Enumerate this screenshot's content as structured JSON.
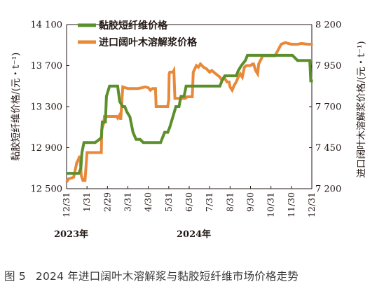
{
  "caption": {
    "figure": "图 5",
    "text": "2024 年进口阔叶木溶解浆与黏胶短纤维市场价格走势"
  },
  "colors": {
    "viscose": "#5b8f2c",
    "pulp": "#e8893a",
    "axis": "#231815"
  },
  "chart_data": {
    "type": "line",
    "x_ticks": [
      "12/31",
      "1/31",
      "2/29",
      "3/31",
      "4/30",
      "5/31",
      "6/30",
      "7/31",
      "8/31",
      "9/30",
      "10/31",
      "11/30",
      "12/31"
    ],
    "year_labels": [
      {
        "label": "2023年",
        "at": "12/31"
      },
      {
        "label": "2024年",
        "at": "6/30"
      }
    ],
    "y_left": {
      "label": "黏胶短纤维价格/(元・t⁻¹)",
      "range": [
        12500,
        14100
      ],
      "ticks": [
        12500,
        12900,
        13300,
        13700,
        14100
      ],
      "tick_labels": [
        "12 500",
        "12 900",
        "13 300",
        "13 700",
        "14 100"
      ]
    },
    "y_right": {
      "label": "进口阔叶木溶解浆价格/(元・t⁻¹)",
      "range": [
        7200,
        8200
      ],
      "ticks": [
        7200,
        7450,
        7700,
        7950,
        8200
      ],
      "tick_labels": [
        "7 200",
        "7 450",
        "7 700",
        "7 950",
        "8 200"
      ]
    },
    "grid": false,
    "legend_position": "top-left",
    "series": [
      {
        "name": "黏胶短纤维价格",
        "axis": "left",
        "points": [
          [
            0,
            12650
          ],
          [
            0.6,
            12650
          ],
          [
            0.7,
            12700
          ],
          [
            0.75,
            12850
          ],
          [
            0.8,
            12900
          ],
          [
            0.85,
            12950
          ],
          [
            0.95,
            12950
          ],
          [
            1.4,
            12950
          ],
          [
            1.6,
            12980
          ],
          [
            1.7,
            13000
          ],
          [
            1.75,
            13150
          ],
          [
            1.9,
            13150
          ],
          [
            1.95,
            13400
          ],
          [
            2.1,
            13500
          ],
          [
            2.5,
            13500
          ],
          [
            2.6,
            13350
          ],
          [
            2.75,
            13300
          ],
          [
            2.85,
            13300
          ],
          [
            2.95,
            13250
          ],
          [
            3.1,
            13200
          ],
          [
            3.25,
            13050
          ],
          [
            3.4,
            12980
          ],
          [
            3.6,
            12980
          ],
          [
            3.75,
            12950
          ],
          [
            4.0,
            12950
          ],
          [
            4.4,
            12950
          ],
          [
            4.6,
            12950
          ],
          [
            4.7,
            13000
          ],
          [
            4.8,
            13050
          ],
          [
            4.95,
            13050
          ],
          [
            5.05,
            13100
          ],
          [
            5.2,
            13200
          ],
          [
            5.35,
            13300
          ],
          [
            5.5,
            13300
          ],
          [
            5.6,
            13400
          ],
          [
            5.75,
            13400
          ],
          [
            5.85,
            13500
          ],
          [
            7.5,
            13500
          ],
          [
            7.6,
            13550
          ],
          [
            7.75,
            13600
          ],
          [
            8.0,
            13600
          ],
          [
            8.3,
            13600
          ],
          [
            8.4,
            13650
          ],
          [
            8.55,
            13700
          ],
          [
            8.75,
            13750
          ],
          [
            8.85,
            13800
          ],
          [
            9.0,
            13800
          ],
          [
            10.25,
            13800
          ],
          [
            10.35,
            13800
          ],
          [
            11.05,
            13800
          ],
          [
            11.3,
            13750
          ],
          [
            11.45,
            13750
          ],
          [
            11.9,
            13750
          ],
          [
            11.95,
            13550
          ],
          [
            12.05,
            13550
          ]
        ]
      },
      {
        "name": "进口阔叶木溶解浆价格",
        "axis": "right",
        "points": [
          [
            0,
            7240
          ],
          [
            0.1,
            7260
          ],
          [
            0.35,
            7270
          ],
          [
            0.5,
            7360
          ],
          [
            0.55,
            7370
          ],
          [
            0.65,
            7400
          ],
          [
            0.72,
            7280
          ],
          [
            0.8,
            7250
          ],
          [
            0.9,
            7250
          ],
          [
            1.0,
            7420
          ],
          [
            1.1,
            7420
          ],
          [
            1.7,
            7420
          ],
          [
            1.72,
            7560
          ],
          [
            1.82,
            7600
          ],
          [
            1.85,
            7640
          ],
          [
            2.15,
            7640
          ],
          [
            2.3,
            7640
          ],
          [
            2.45,
            7640
          ],
          [
            2.5,
            7630
          ],
          [
            2.6,
            7650
          ],
          [
            2.65,
            7620
          ],
          [
            2.75,
            7820
          ],
          [
            3.0,
            7810
          ],
          [
            3.5,
            7810
          ],
          [
            3.85,
            7820
          ],
          [
            4.0,
            7815
          ],
          [
            4.1,
            7800
          ],
          [
            4.2,
            7810
          ],
          [
            4.35,
            7810
          ],
          [
            4.38,
            7700
          ],
          [
            4.9,
            7700
          ],
          [
            4.95,
            7700
          ],
          [
            5.0,
            7740
          ],
          [
            5.02,
            7900
          ],
          [
            5.05,
            7910
          ],
          [
            5.2,
            7910
          ],
          [
            5.25,
            7920
          ],
          [
            5.3,
            7750
          ],
          [
            5.45,
            7750
          ],
          [
            5.8,
            7750
          ],
          [
            5.9,
            7760
          ],
          [
            6.0,
            7760
          ],
          [
            6.15,
            7760
          ],
          [
            6.2,
            7910
          ],
          [
            6.35,
            7950
          ],
          [
            6.45,
            7940
          ],
          [
            6.55,
            7960
          ],
          [
            6.7,
            7940
          ],
          [
            6.85,
            7930
          ],
          [
            7.0,
            7910
          ],
          [
            7.1,
            7920
          ],
          [
            7.3,
            7900
          ],
          [
            7.5,
            7880
          ],
          [
            7.6,
            7860
          ],
          [
            7.7,
            7880
          ],
          [
            7.85,
            7850
          ],
          [
            7.95,
            7850
          ],
          [
            8.0,
            7820
          ],
          [
            8.1,
            7800
          ],
          [
            8.2,
            7830
          ],
          [
            8.3,
            7850
          ],
          [
            8.4,
            7880
          ],
          [
            8.5,
            7900
          ],
          [
            8.6,
            7880
          ],
          [
            8.7,
            7940
          ],
          [
            8.8,
            7950
          ],
          [
            9.0,
            7950
          ],
          [
            9.1,
            7960
          ],
          [
            9.15,
            7960
          ],
          [
            9.25,
            7920
          ],
          [
            9.35,
            7900
          ],
          [
            9.4,
            7960
          ],
          [
            9.6,
            8010
          ],
          [
            9.75,
            8010
          ],
          [
            10.2,
            8010
          ],
          [
            10.5,
            8080
          ],
          [
            10.7,
            8090
          ],
          [
            11.0,
            8080
          ],
          [
            11.3,
            8080
          ],
          [
            11.5,
            8085
          ],
          [
            11.8,
            8080
          ],
          [
            12.05,
            8080
          ]
        ]
      }
    ]
  }
}
